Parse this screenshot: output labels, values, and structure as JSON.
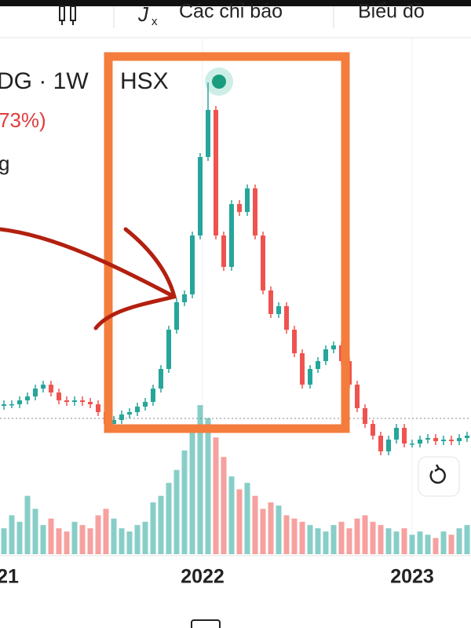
{
  "toolbar": {
    "indicators": "Các chỉ báo",
    "chart_menu": "Biểu đồ"
  },
  "header": {
    "symbol": "DG · 1W",
    "exchange": "HSX",
    "change": "73%)",
    "line3": "g"
  },
  "chart_data": {
    "type": "candlestick",
    "up_color": "#26a69a",
    "down_color": "#ef5350",
    "x_labels": [
      "21",
      "2022",
      "2023"
    ],
    "open": [
      83,
      85,
      85,
      90,
      95,
      105,
      110,
      100,
      90,
      88,
      90,
      88,
      85,
      75,
      60,
      65,
      72,
      75,
      82,
      88,
      105,
      130,
      180,
      215,
      225,
      300,
      400,
      460,
      300,
      260,
      340,
      330,
      360,
      300,
      230,
      200,
      210,
      180,
      150,
      110,
      130,
      140,
      155,
      160,
      140,
      110,
      80,
      60,
      45,
      25,
      40,
      55,
      35,
      35,
      40,
      42,
      38,
      40,
      38,
      42
    ],
    "close": [
      85,
      85,
      90,
      95,
      105,
      110,
      100,
      90,
      88,
      90,
      88,
      85,
      75,
      60,
      65,
      72,
      75,
      82,
      88,
      105,
      130,
      180,
      215,
      225,
      300,
      400,
      460,
      300,
      260,
      340,
      330,
      360,
      300,
      230,
      200,
      210,
      180,
      150,
      110,
      130,
      140,
      155,
      160,
      140,
      110,
      80,
      60,
      45,
      25,
      40,
      55,
      35,
      35,
      40,
      42,
      38,
      40,
      38,
      42,
      45
    ],
    "high": [
      90,
      90,
      95,
      100,
      110,
      115,
      115,
      105,
      95,
      95,
      95,
      93,
      90,
      80,
      70,
      77,
      80,
      87,
      93,
      110,
      135,
      185,
      220,
      230,
      305,
      405,
      495,
      465,
      305,
      345,
      345,
      365,
      365,
      305,
      235,
      215,
      215,
      185,
      155,
      135,
      145,
      160,
      165,
      165,
      145,
      115,
      85,
      65,
      50,
      45,
      60,
      60,
      40,
      45,
      47,
      47,
      45,
      45,
      47,
      50
    ],
    "low": [
      78,
      80,
      80,
      85,
      90,
      100,
      95,
      85,
      83,
      83,
      83,
      80,
      70,
      55,
      55,
      60,
      67,
      70,
      77,
      83,
      100,
      125,
      175,
      210,
      220,
      295,
      395,
      295,
      255,
      255,
      325,
      325,
      295,
      225,
      195,
      195,
      175,
      145,
      105,
      105,
      125,
      135,
      150,
      135,
      105,
      75,
      55,
      40,
      20,
      20,
      35,
      30,
      30,
      30,
      35,
      33,
      33,
      33,
      33,
      37
    ],
    "volume": [
      40,
      60,
      50,
      90,
      70,
      45,
      55,
      40,
      35,
      50,
      45,
      40,
      60,
      70,
      55,
      40,
      35,
      45,
      50,
      80,
      90,
      110,
      130,
      160,
      200,
      230,
      210,
      180,
      150,
      120,
      100,
      110,
      90,
      70,
      80,
      75,
      60,
      55,
      50,
      45,
      40,
      35,
      45,
      50,
      40,
      55,
      60,
      50,
      45,
      40,
      35,
      40,
      30,
      35,
      30,
      25,
      35,
      30,
      40,
      45
    ]
  }
}
